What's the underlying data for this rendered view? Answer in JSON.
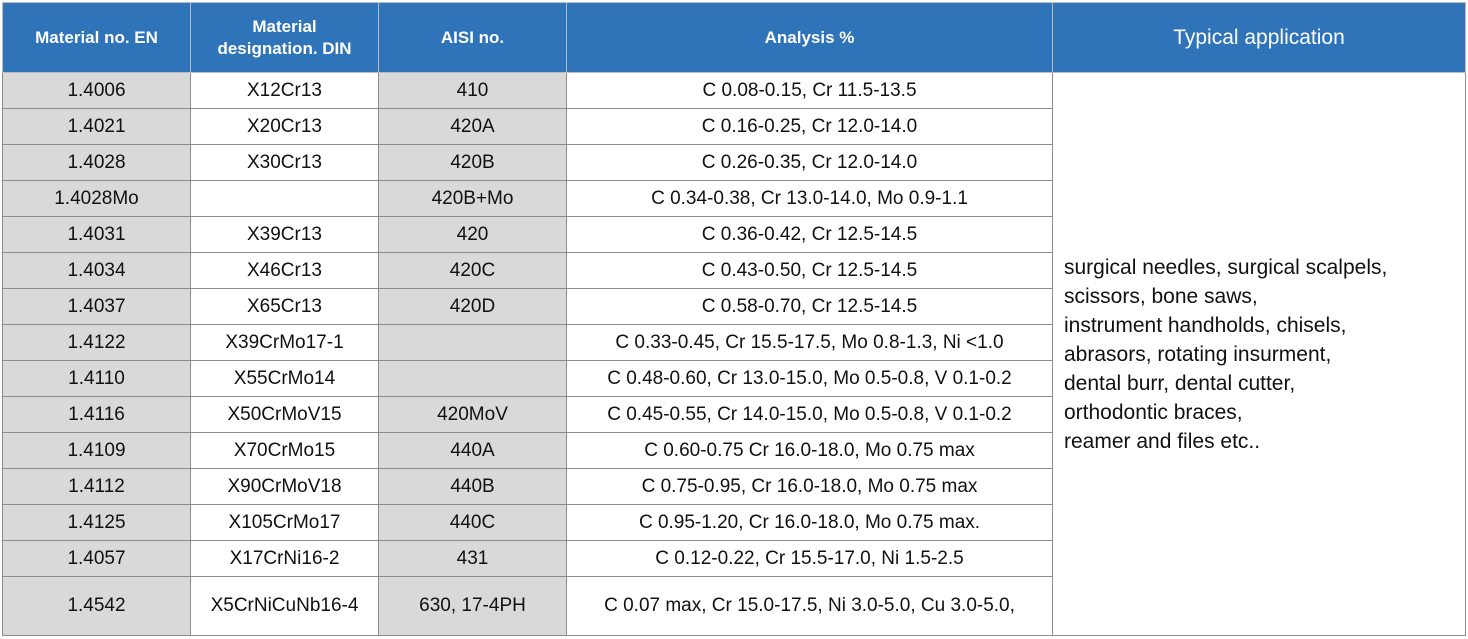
{
  "headers": {
    "material_en": "Material no. EN",
    "designation_din_line1": "Material",
    "designation_din_line2": "designation. DIN",
    "aisi": "AISI no.",
    "analysis": "Analysis %",
    "application": "Typical application"
  },
  "rows": [
    {
      "en": "1.4006",
      "din": "X12Cr13",
      "aisi": "410",
      "analysis": "C 0.08-0.15, Cr 11.5-13.5"
    },
    {
      "en": "1.4021",
      "din": "X20Cr13",
      "aisi": "420A",
      "analysis": "C 0.16-0.25, Cr 12.0-14.0"
    },
    {
      "en": "1.4028",
      "din": "X30Cr13",
      "aisi": "420B",
      "analysis": "C 0.26-0.35, Cr 12.0-14.0"
    },
    {
      "en": "1.4028Mo",
      "din": "",
      "aisi": "420B+Mo",
      "analysis": "C 0.34-0.38, Cr 13.0-14.0, Mo 0.9-1.1"
    },
    {
      "en": "1.4031",
      "din": "X39Cr13",
      "aisi": "420",
      "analysis": "C 0.36-0.42, Cr 12.5-14.5"
    },
    {
      "en": "1.4034",
      "din": "X46Cr13",
      "aisi": "420C",
      "analysis": "C 0.43-0.50, Cr 12.5-14.5"
    },
    {
      "en": "1.4037",
      "din": "X65Cr13",
      "aisi": "420D",
      "analysis": "C 0.58-0.70, Cr 12.5-14.5"
    },
    {
      "en": "1.4122",
      "din": "X39CrMo17-1",
      "aisi": "",
      "analysis": "C 0.33-0.45, Cr 15.5-17.5, Mo 0.8-1.3, Ni <1.0"
    },
    {
      "en": "1.4110",
      "din": "X55CrMo14",
      "aisi": "",
      "analysis": "C 0.48-0.60, Cr 13.0-15.0, Mo 0.5-0.8, V 0.1-0.2"
    },
    {
      "en": "1.4116",
      "din": "X50CrMoV15",
      "aisi": "420MoV",
      "analysis": "C 0.45-0.55, Cr 14.0-15.0, Mo 0.5-0.8, V 0.1-0.2"
    },
    {
      "en": "1.4109",
      "din": "X70CrMo15",
      "aisi": "440A",
      "analysis": "C 0.60-0.75 Cr 16.0-18.0, Mo 0.75 max"
    },
    {
      "en": "1.4112",
      "din": "X90CrMoV18",
      "aisi": "440B",
      "analysis": "C 0.75-0.95, Cr 16.0-18.0, Mo 0.75 max"
    },
    {
      "en": "1.4125",
      "din": "X105CrMo17",
      "aisi": "440C",
      "analysis": "C 0.95-1.20, Cr 16.0-18.0, Mo 0.75 max."
    },
    {
      "en": "1.4057",
      "din": "X17CrNi16-2",
      "aisi": "431",
      "analysis": "C 0.12-0.22, Cr 15.5-17.0, Ni 1.5-2.5"
    },
    {
      "en": "1.4542",
      "din": "X5CrNiCuNb16-4",
      "aisi": "630, 17-4PH",
      "analysis": "C 0.07 max, Cr 15.0-17.5, Ni 3.0-5.0, Cu 3.0-5.0,"
    }
  ],
  "application_lines": [
    "surgical needles, surgical scalpels,",
    "scissors, bone saws,",
    "instrument handholds, chisels,",
    "abrasors, rotating insurment,",
    "dental burr, dental cutter,",
    "orthodontic braces,",
    "reamer and files etc.."
  ],
  "colors": {
    "header_bg": "#2f73b8",
    "header_text": "#ffffff",
    "shaded_cell": "#d9d9d9",
    "border": "#8c8c8c"
  }
}
